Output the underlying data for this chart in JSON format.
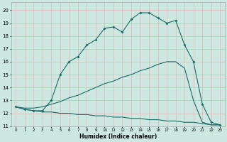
{
  "xlabel": "Humidex (Indice chaleur)",
  "bg_color": "#cce8e0",
  "grid_color": "#e8b4b4",
  "line_color": "#1a6b6b",
  "xlim": [
    -0.5,
    23.5
  ],
  "ylim": [
    11,
    20.6
  ],
  "yticks": [
    11,
    12,
    13,
    14,
    15,
    16,
    17,
    18,
    19,
    20
  ],
  "xticks": [
    0,
    1,
    2,
    3,
    4,
    5,
    6,
    7,
    8,
    9,
    10,
    11,
    12,
    13,
    14,
    15,
    16,
    17,
    18,
    19,
    20,
    21,
    22,
    23
  ],
  "l1x": [
    0,
    1,
    2,
    3,
    4,
    5,
    6,
    7,
    8,
    9,
    10,
    11,
    12,
    13,
    14,
    15,
    16,
    17,
    18,
    19,
    20,
    21,
    22,
    23
  ],
  "l1y": [
    12.5,
    12.3,
    12.2,
    12.2,
    13.0,
    15.0,
    16.0,
    16.4,
    17.3,
    17.7,
    18.6,
    18.7,
    18.3,
    19.3,
    19.8,
    19.8,
    19.4,
    19.0,
    19.2,
    17.3,
    16.0,
    12.7,
    11.3,
    11.1
  ],
  "l2x": [
    0,
    1,
    2,
    3,
    4,
    5,
    6,
    7,
    8,
    9,
    10,
    11,
    12,
    13,
    14,
    15,
    16,
    17,
    18,
    19,
    20,
    21,
    22,
    23
  ],
  "l2y": [
    12.5,
    12.4,
    12.4,
    12.5,
    12.7,
    12.9,
    13.2,
    13.4,
    13.7,
    14.0,
    14.3,
    14.5,
    14.8,
    15.0,
    15.3,
    15.5,
    15.8,
    16.0,
    16.0,
    15.5,
    13.0,
    11.3,
    11.1,
    11.1
  ],
  "l3x": [
    0,
    1,
    2,
    3,
    4,
    5,
    6,
    7,
    8,
    9,
    10,
    11,
    12,
    13,
    14,
    15,
    16,
    17,
    18,
    19,
    20,
    21,
    22,
    23
  ],
  "l3y": [
    12.5,
    12.3,
    12.2,
    12.1,
    12.1,
    12.0,
    12.0,
    11.9,
    11.9,
    11.8,
    11.8,
    11.7,
    11.7,
    11.6,
    11.6,
    11.5,
    11.5,
    11.4,
    11.4,
    11.3,
    11.3,
    11.2,
    11.1,
    11.1
  ]
}
